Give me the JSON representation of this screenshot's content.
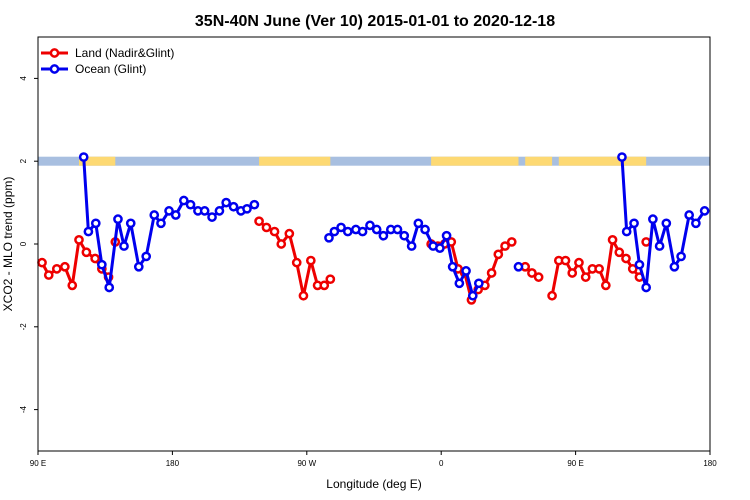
{
  "chart_data": {
    "type": "line",
    "title": "35N-40N June (Ver 10)   2015-01-01 to 2020-12-18",
    "xlabel": "Longitude (deg E)",
    "ylabel": "XCO2 - MLO trend (ppm)",
    "xlim": [
      0,
      100
    ],
    "ylim": [
      -5,
      5
    ],
    "x_ticks": [
      {
        "x": 0,
        "label": "90 E"
      },
      {
        "x": 20,
        "label": "180"
      },
      {
        "x": 40,
        "label": "90 W"
      },
      {
        "x": 60,
        "label": "0"
      },
      {
        "x": 80,
        "label": "90 E"
      },
      {
        "x": 100,
        "label": "180"
      }
    ],
    "y_ticks": [
      -4,
      -2,
      0,
      2,
      4
    ],
    "legend": {
      "position": "top-left"
    },
    "landmask_y": 2,
    "landmask_colors": {
      "land": "#fdd973",
      "ocean": "#a8bfe0"
    },
    "land_spans": [
      [
        6.1,
        11.5
      ],
      [
        32.9,
        43.5
      ],
      [
        58.5,
        71.5
      ],
      [
        72.5,
        76.5
      ],
      [
        77.5,
        90.5
      ]
    ],
    "series": [
      {
        "name": "Land (Nadir&Glint)",
        "color": "#ee0000",
        "segments": [
          [
            [
              0.6,
              -0.45
            ],
            [
              1.6,
              -0.75
            ],
            [
              2.8,
              -0.6
            ],
            [
              4.0,
              -0.55
            ],
            [
              5.1,
              -1.0
            ],
            [
              6.1,
              0.1
            ],
            [
              7.2,
              -0.2
            ],
            [
              8.5,
              -0.35
            ],
            [
              9.5,
              -0.6
            ],
            [
              10.5,
              -0.8
            ]
          ],
          [
            [
              11.5,
              0.05
            ]
          ],
          [
            [
              32.9,
              0.55
            ],
            [
              34.0,
              0.4
            ],
            [
              35.2,
              0.3
            ],
            [
              36.2,
              0.0
            ],
            [
              37.4,
              0.25
            ],
            [
              38.5,
              -0.45
            ],
            [
              39.5,
              -1.25
            ],
            [
              40.6,
              -0.4
            ],
            [
              41.6,
              -1.0
            ],
            [
              42.6,
              -1.0
            ],
            [
              43.5,
              -0.85
            ]
          ],
          [
            [
              58.5,
              0.0
            ],
            [
              59.5,
              -0.05
            ],
            [
              60.5,
              0.0
            ],
            [
              61.5,
              0.05
            ],
            [
              62.5,
              -0.6
            ],
            [
              63.5,
              -0.7
            ],
            [
              64.5,
              -1.35
            ],
            [
              65.5,
              -1.1
            ],
            [
              66.5,
              -1.0
            ],
            [
              67.5,
              -0.7
            ],
            [
              68.5,
              -0.25
            ],
            [
              69.5,
              -0.05
            ],
            [
              70.5,
              0.05
            ]
          ],
          [
            [
              72.5,
              -0.55
            ],
            [
              73.5,
              -0.7
            ],
            [
              74.5,
              -0.8
            ]
          ],
          [
            [
              76.5,
              -1.25
            ],
            [
              77.5,
              -0.4
            ],
            [
              78.5,
              -0.4
            ],
            [
              79.5,
              -0.7
            ],
            [
              80.5,
              -0.45
            ],
            [
              81.5,
              -0.8
            ],
            [
              82.5,
              -0.6
            ],
            [
              83.5,
              -0.6
            ],
            [
              84.5,
              -1.0
            ],
            [
              85.5,
              0.1
            ],
            [
              86.5,
              -0.2
            ],
            [
              87.5,
              -0.35
            ],
            [
              88.5,
              -0.6
            ],
            [
              89.5,
              -0.8
            ]
          ],
          [
            [
              90.5,
              0.05
            ]
          ]
        ]
      },
      {
        "name": "Ocean (Glint)",
        "color": "#0000ee",
        "segments": [
          [
            [
              6.8,
              2.1
            ],
            [
              7.5,
              0.3
            ],
            [
              8.6,
              0.5
            ],
            [
              9.5,
              -0.5
            ],
            [
              10.6,
              -1.05
            ],
            [
              11.9,
              0.6
            ],
            [
              12.8,
              -0.05
            ],
            [
              13.8,
              0.5
            ],
            [
              15.0,
              -0.55
            ],
            [
              16.1,
              -0.3
            ],
            [
              17.3,
              0.7
            ],
            [
              18.3,
              0.5
            ],
            [
              19.5,
              0.8
            ],
            [
              20.5,
              0.7
            ],
            [
              21.7,
              1.05
            ],
            [
              22.7,
              0.95
            ],
            [
              23.8,
              0.8
            ],
            [
              24.8,
              0.8
            ],
            [
              25.9,
              0.65
            ],
            [
              27.0,
              0.8
            ],
            [
              28.0,
              1.0
            ],
            [
              29.1,
              0.9
            ],
            [
              30.2,
              0.8
            ],
            [
              31.1,
              0.85
            ],
            [
              32.2,
              0.95
            ]
          ],
          [
            [
              43.3,
              0.15
            ],
            [
              44.1,
              0.3
            ],
            [
              45.1,
              0.4
            ],
            [
              46.1,
              0.3
            ],
            [
              47.3,
              0.35
            ],
            [
              48.3,
              0.3
            ],
            [
              49.4,
              0.45
            ],
            [
              50.4,
              0.35
            ],
            [
              51.4,
              0.2
            ],
            [
              52.5,
              0.35
            ],
            [
              53.5,
              0.35
            ],
            [
              54.5,
              0.2
            ],
            [
              55.6,
              -0.05
            ],
            [
              56.6,
              0.5
            ],
            [
              57.6,
              0.35
            ],
            [
              58.8,
              -0.05
            ],
            [
              59.8,
              -0.1
            ],
            [
              60.8,
              0.2
            ],
            [
              61.7,
              -0.55
            ],
            [
              62.7,
              -0.95
            ],
            [
              63.7,
              -0.65
            ],
            [
              64.7,
              -1.25
            ],
            [
              65.6,
              -0.95
            ]
          ],
          [
            [
              71.5,
              -0.55
            ]
          ],
          [
            [
              86.9,
              2.1
            ],
            [
              87.6,
              0.3
            ],
            [
              88.7,
              0.5
            ],
            [
              89.5,
              -0.5
            ],
            [
              90.5,
              -1.05
            ],
            [
              91.5,
              0.6
            ],
            [
              92.5,
              -0.05
            ],
            [
              93.5,
              0.5
            ],
            [
              94.7,
              -0.55
            ],
            [
              95.7,
              -0.3
            ],
            [
              96.9,
              0.7
            ],
            [
              97.9,
              0.5
            ],
            [
              99.2,
              0.8
            ]
          ]
        ]
      }
    ]
  }
}
